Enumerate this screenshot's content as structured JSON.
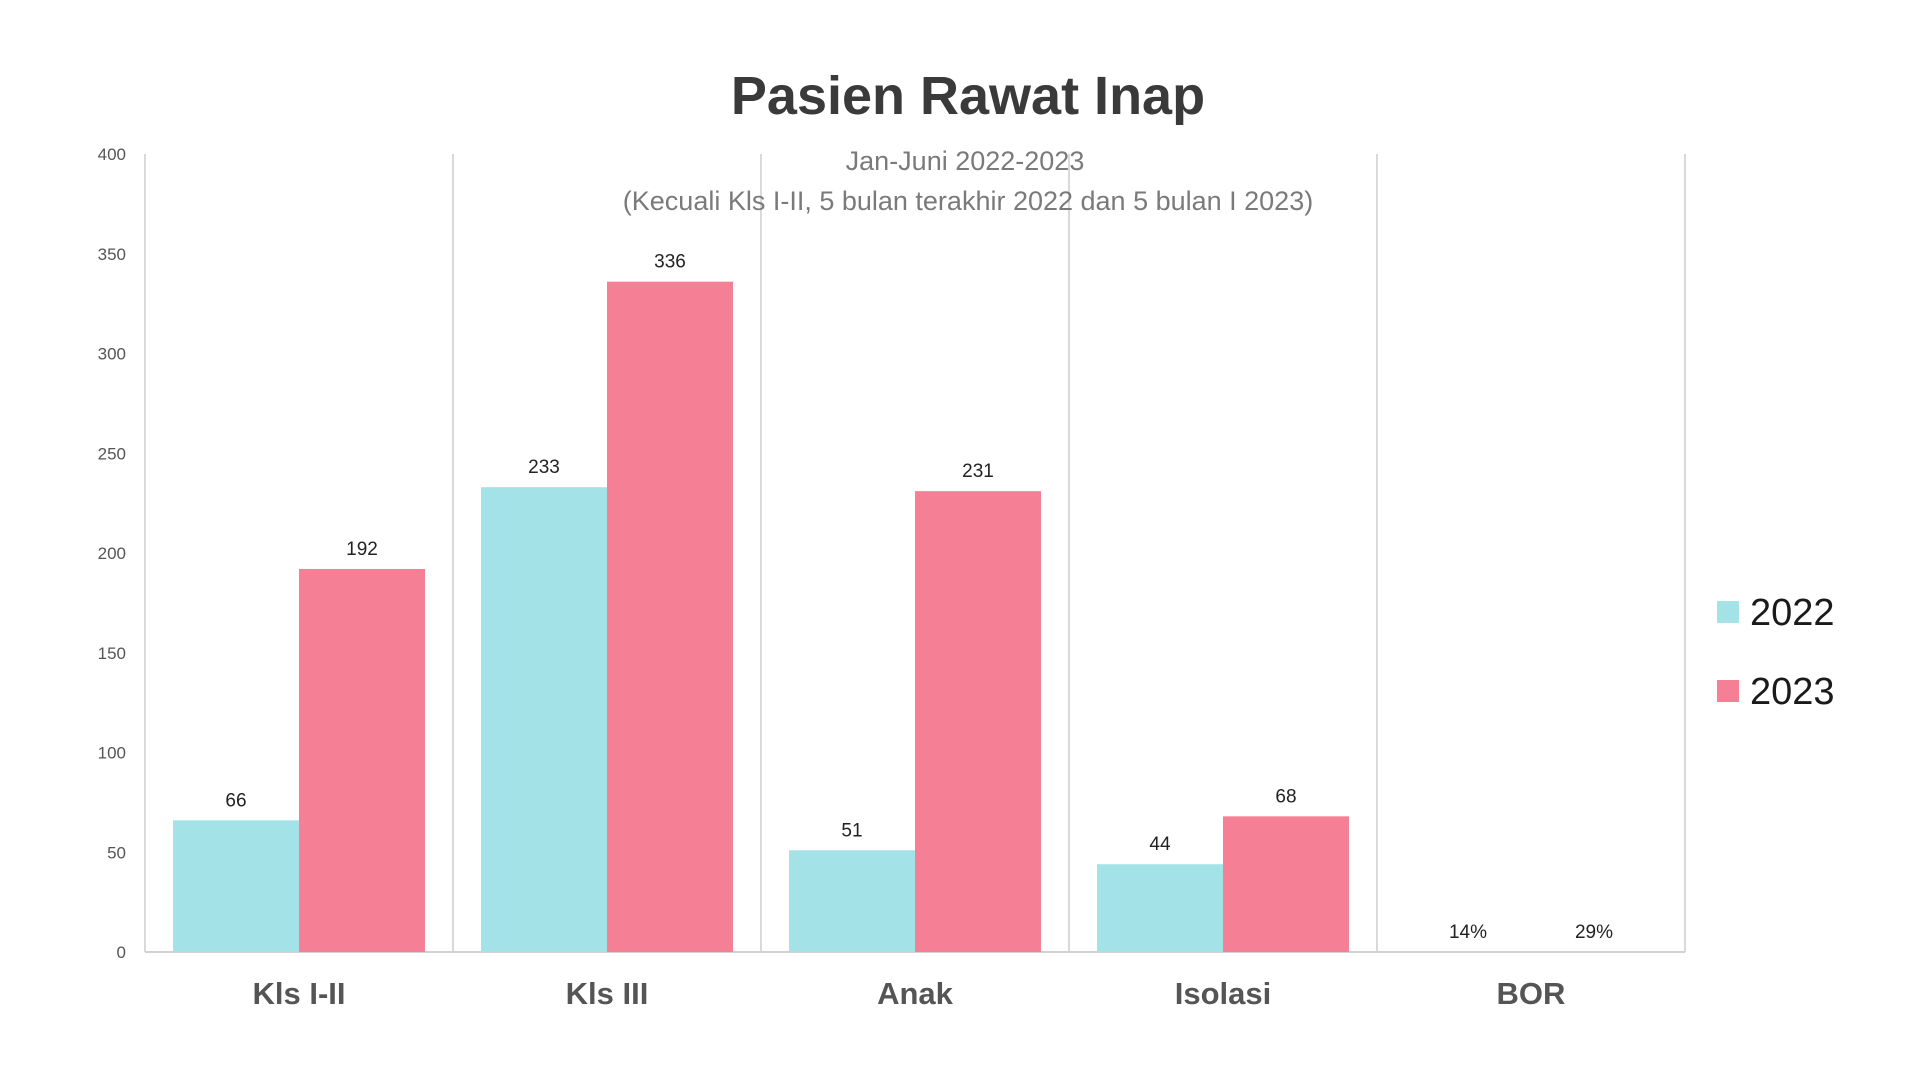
{
  "chart_data": {
    "type": "bar",
    "title": "Pasien Rawat Inap",
    "subtitle": [
      "Jan-Juni 2022-2023",
      "(Kecuali Kls I-II, 5 bulan terakhir 2022 dan 5 bulan I 2023)"
    ],
    "categories": [
      "Kls I-II",
      "Kls III",
      "Anak",
      "Isolasi",
      "BOR"
    ],
    "series": [
      {
        "name": "2022",
        "color": "#a3e3e8",
        "values": [
          66,
          233,
          51,
          44,
          0.14
        ],
        "labels": [
          "66",
          "233",
          "51",
          "44",
          "14%"
        ]
      },
      {
        "name": "2023",
        "color": "#f58095",
        "values": [
          192,
          336,
          231,
          68,
          0.29
        ],
        "labels": [
          "192",
          "336",
          "231",
          "68",
          "29%"
        ]
      }
    ],
    "ylim": [
      0,
      400
    ],
    "yticks": [
      "0",
      "50",
      "100",
      "150",
      "200",
      "250",
      "300",
      "350",
      "400"
    ],
    "grid": "vertical separators between categories",
    "legend": "right"
  }
}
